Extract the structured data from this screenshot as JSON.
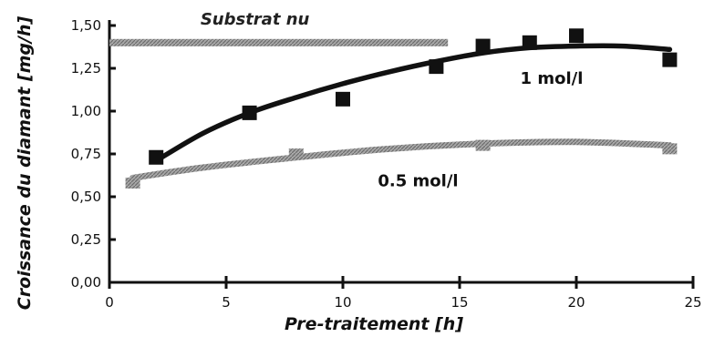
{
  "chart_data": {
    "type": "scatter",
    "xlabel": "Pre-traitement [h]",
    "ylabel": "Croissance du diamant [mg/h]",
    "xlim": [
      0,
      25
    ],
    "ylim": [
      0,
      1.5
    ],
    "x_ticks": [
      "0",
      "5",
      "10",
      "15",
      "20",
      "25"
    ],
    "y_ticks": [
      "0,00",
      "0,25",
      "0,50",
      "0,75",
      "1,00",
      "1,25",
      "1,50"
    ],
    "grid": false,
    "series": [
      {
        "name": "1 mol/l",
        "color": "#111111",
        "marker": "square",
        "x": [
          2,
          6,
          10,
          14,
          16,
          18,
          20,
          24
        ],
        "y": [
          0.73,
          0.99,
          1.07,
          1.26,
          1.38,
          1.4,
          1.44,
          1.3
        ],
        "fit": [
          [
            2,
            0.71
          ],
          [
            4,
            0.87
          ],
          [
            6,
            0.99
          ],
          [
            8,
            1.08
          ],
          [
            10,
            1.16
          ],
          [
            12,
            1.23
          ],
          [
            14,
            1.29
          ],
          [
            16,
            1.34
          ],
          [
            18,
            1.37
          ],
          [
            20,
            1.38
          ],
          [
            22,
            1.38
          ],
          [
            24,
            1.36
          ]
        ]
      },
      {
        "name": "0.5 mol/l",
        "color": "#999999",
        "marker": "square",
        "x": [
          1,
          8,
          16,
          24
        ],
        "y": [
          0.58,
          0.75,
          0.8,
          0.78
        ],
        "fit": [
          [
            1,
            0.61
          ],
          [
            4,
            0.67
          ],
          [
            8,
            0.73
          ],
          [
            12,
            0.78
          ],
          [
            16,
            0.81
          ],
          [
            20,
            0.82
          ],
          [
            24,
            0.8
          ]
        ]
      },
      {
        "name": "Substrat nu",
        "color": "#999999",
        "marker": "none",
        "x": [
          0,
          14.5
        ],
        "y": [
          1.4,
          1.4
        ]
      }
    ]
  }
}
